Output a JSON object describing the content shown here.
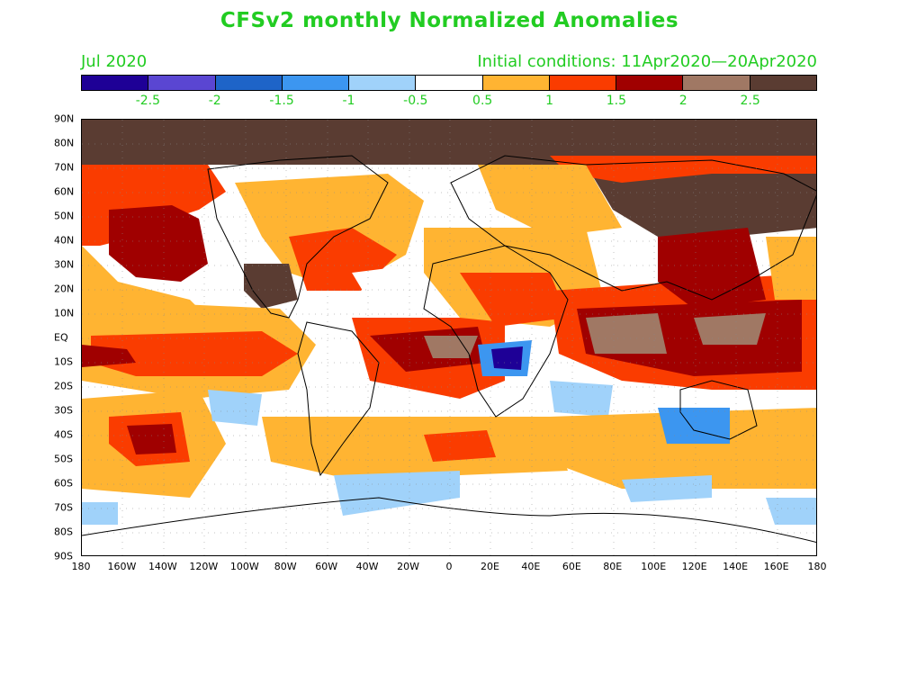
{
  "header": {
    "title": "CFSv2 monthly Normalized Anomalies",
    "valid_month": "Jul 2020",
    "initial_conditions": "Initial conditions: 11Apr2020—20Apr2020"
  },
  "colorbar": {
    "colors": [
      "#1e0096",
      "#5a46d2",
      "#1e64c8",
      "#3c96f0",
      "#a0d2fa",
      "#ffffff",
      "#ffb432",
      "#fa3c00",
      "#a00000",
      "#a07864",
      "#5a3c32"
    ],
    "labels": [
      "-2.5",
      "-2",
      "-1.5",
      "-1",
      "-0.5",
      "0.5",
      "1",
      "1.5",
      "2",
      "2.5"
    ]
  },
  "axes": {
    "lat_labels": [
      "90N",
      "80N",
      "70N",
      "60N",
      "50N",
      "40N",
      "30N",
      "20N",
      "10N",
      "EQ",
      "10S",
      "20S",
      "30S",
      "40S",
      "50S",
      "60S",
      "70S",
      "80S",
      "90S"
    ],
    "lon_labels": [
      "180",
      "160W",
      "140W",
      "120W",
      "100W",
      "80W",
      "60W",
      "40W",
      "20W",
      "0",
      "20E",
      "40E",
      "60E",
      "80E",
      "100E",
      "120E",
      "140E",
      "160E",
      "180"
    ]
  }
}
